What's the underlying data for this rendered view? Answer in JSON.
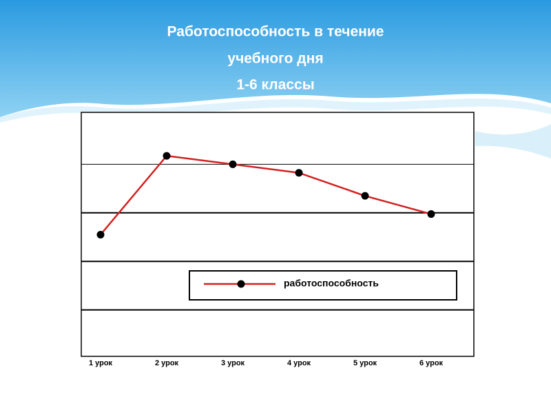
{
  "chart_data": {
    "type": "line",
    "title": [
      "Работоспособность в течение",
      "учебного дня",
      "1-6 классы"
    ],
    "categories": [
      "1 урок",
      "2 урок",
      "3 урок",
      "4 урок",
      "5 урок",
      "6 урок"
    ],
    "series": [
      {
        "name": "работоспособность",
        "color": "#d42020",
        "values": [
          51,
          83.5,
          80,
          76.5,
          67,
          59.5
        ]
      }
    ],
    "ylim": [
      0,
      100
    ],
    "yticks": [
      20,
      40,
      60,
      80
    ],
    "grid": true,
    "legend": "bottom-right"
  }
}
